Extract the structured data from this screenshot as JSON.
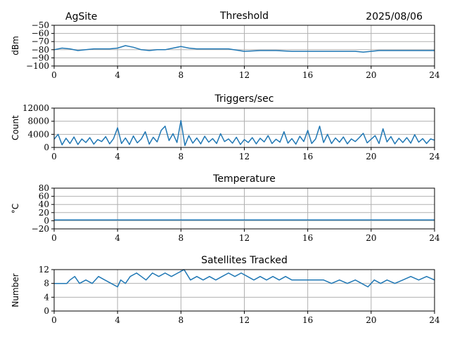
{
  "header": {
    "site": "AgSite",
    "date": "2025/08/06"
  },
  "colors": {
    "line": "#1f77b4",
    "grid": "#b0b0b0",
    "axis": "#000000"
  },
  "chart_data": [
    {
      "type": "line",
      "title": "Threshold",
      "xlabel": "",
      "ylabel": "dBm",
      "xlim": [
        0,
        24
      ],
      "ylim": [
        -100,
        -50
      ],
      "xticks": [
        0,
        4,
        8,
        12,
        16,
        20,
        24
      ],
      "yticks": [
        -100,
        -90,
        -80,
        -70,
        -60,
        -50
      ],
      "ytick_labels": [
        "−100",
        "−90",
        "−80",
        "−70",
        "−60",
        "−50"
      ],
      "grid": true,
      "x": [
        0,
        0.5,
        1,
        1.5,
        2,
        2.5,
        3,
        3.5,
        4,
        4.5,
        5,
        5.5,
        6,
        6.5,
        7,
        7.5,
        8,
        8.5,
        9,
        10,
        11,
        12,
        13,
        14,
        15,
        16,
        17,
        18,
        19,
        19.5,
        20,
        20.5,
        21,
        22,
        23,
        24
      ],
      "values": [
        -80,
        -78,
        -79,
        -81,
        -80,
        -79,
        -79,
        -79,
        -78,
        -75,
        -77,
        -80,
        -81,
        -80,
        -80,
        -78,
        -76,
        -78,
        -79,
        -79,
        -79,
        -82,
        -81,
        -81,
        -82,
        -82,
        -82,
        -82,
        -82,
        -83,
        -82,
        -81,
        -81,
        -81,
        -81,
        -81
      ]
    },
    {
      "type": "line",
      "title": "Triggers/sec",
      "xlabel": "",
      "ylabel": "Count",
      "xlim": [
        0,
        24
      ],
      "ylim": [
        0,
        12000
      ],
      "xticks": [
        0,
        4,
        8,
        12,
        16,
        20,
        24
      ],
      "yticks": [
        0,
        4000,
        8000,
        12000
      ],
      "ytick_labels": [
        "0",
        "4000",
        "8000",
        "12000"
      ],
      "grid": true,
      "x": [
        0,
        0.25,
        0.5,
        0.75,
        1,
        1.25,
        1.5,
        1.75,
        2,
        2.25,
        2.5,
        2.75,
        3,
        3.25,
        3.5,
        3.75,
        4,
        4.25,
        4.5,
        4.75,
        5,
        5.25,
        5.5,
        5.75,
        6,
        6.25,
        6.5,
        6.75,
        7,
        7.25,
        7.5,
        7.75,
        8,
        8.25,
        8.5,
        8.75,
        9,
        9.25,
        9.5,
        9.75,
        10,
        10.25,
        10.5,
        10.75,
        11,
        11.25,
        11.5,
        11.75,
        12,
        12.25,
        12.5,
        12.75,
        13,
        13.25,
        13.5,
        13.75,
        14,
        14.25,
        14.5,
        14.75,
        15,
        15.25,
        15.5,
        15.75,
        16,
        16.25,
        16.5,
        16.75,
        17,
        17.25,
        17.5,
        17.75,
        18,
        18.25,
        18.5,
        18.75,
        19,
        19.25,
        19.5,
        19.75,
        20,
        20.25,
        20.5,
        20.75,
        21,
        21.25,
        21.5,
        21.75,
        22,
        22.25,
        22.5,
        22.75,
        23,
        23.25,
        23.5,
        23.75,
        24
      ],
      "values": [
        2500,
        4000,
        800,
        2800,
        1200,
        3200,
        900,
        2600,
        1500,
        3000,
        1000,
        2400,
        1800,
        3300,
        1100,
        2700,
        6000,
        1200,
        2900,
        900,
        3500,
        1400,
        2600,
        4800,
        1000,
        3100,
        1700,
        5200,
        6500,
        2100,
        4200,
        1500,
        8200,
        600,
        3600,
        1300,
        2900,
        1100,
        3400,
        1600,
        2700,
        1200,
        4200,
        1800,
        2600,
        1300,
        3100,
        900,
        2400,
        1500,
        3000,
        1100,
        2800,
        1700,
        3600,
        1200,
        2500,
        1600,
        4800,
        1300,
        2700,
        1000,
        3400,
        1800,
        5200,
        1200,
        2600,
        6500,
        1500,
        4000,
        1200,
        2900,
        1600,
        3200,
        1100,
        2600,
        1800,
        3000,
        4300,
        1400,
        2500,
        3600,
        1200,
        5700,
        1700,
        3300,
        1100,
        2800,
        1500,
        3000,
        1300,
        3900,
        1600,
        2700,
        1200,
        2600,
        2200
      ]
    },
    {
      "type": "line",
      "title": "Temperature",
      "xlabel": "",
      "ylabel": "°C",
      "xlim": [
        0,
        24
      ],
      "ylim": [
        -20,
        80
      ],
      "xticks": [
        0,
        4,
        8,
        12,
        16,
        20,
        24
      ],
      "yticks": [
        -20,
        0,
        20,
        40,
        60,
        80
      ],
      "ytick_labels": [
        "−20",
        "0",
        "20",
        "40",
        "60",
        "80"
      ],
      "grid": true,
      "x": [
        0,
        24
      ],
      "values": [
        2,
        2
      ]
    },
    {
      "type": "line",
      "title": "Satellites Tracked",
      "xlabel": "",
      "ylabel": "Number",
      "xlim": [
        0,
        24
      ],
      "ylim": [
        0,
        12
      ],
      "xticks": [
        0,
        4,
        8,
        12,
        16,
        20,
        24
      ],
      "yticks": [
        0,
        4,
        8,
        12
      ],
      "ytick_labels": [
        "0",
        "4",
        "8",
        "12"
      ],
      "grid": true,
      "x": [
        0,
        0.8,
        1,
        1.3,
        1.6,
        2,
        2.4,
        2.8,
        3.2,
        3.6,
        4,
        4.2,
        4.5,
        4.8,
        5.2,
        5.5,
        5.8,
        6.2,
        6.6,
        7,
        7.4,
        7.8,
        8.2,
        8.6,
        9,
        9.4,
        9.8,
        10.2,
        10.6,
        11,
        11.4,
        11.8,
        12.2,
        12.6,
        13,
        13.4,
        13.8,
        14.2,
        14.6,
        15,
        15.5,
        16,
        16.5,
        17,
        17.5,
        18,
        18.5,
        19,
        19.4,
        19.8,
        20.2,
        20.6,
        21,
        21.5,
        22,
        22.5,
        23,
        23.5,
        24
      ],
      "values": [
        8,
        8,
        9,
        10,
        8,
        9,
        8,
        10,
        9,
        8,
        7,
        9,
        8,
        10,
        11,
        10,
        9,
        11,
        10,
        11,
        10,
        11,
        12,
        9,
        10,
        9,
        10,
        9,
        10,
        11,
        10,
        11,
        10,
        9,
        10,
        9,
        10,
        9,
        10,
        9,
        9,
        9,
        9,
        9,
        8,
        9,
        8,
        9,
        8,
        7,
        9,
        8,
        9,
        8,
        9,
        10,
        9,
        10,
        9
      ]
    }
  ]
}
